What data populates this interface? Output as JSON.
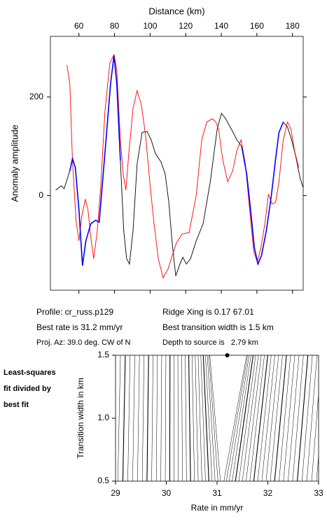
{
  "chart_data": [
    {
      "type": "line",
      "xlabel": "Distance (km)",
      "ylabel": "Anomaly amplitude",
      "xlim": [
        44,
        186
      ],
      "xticks": [
        60,
        80,
        100,
        120,
        140,
        160,
        180
      ],
      "ylim": [
        -192,
        323
      ],
      "yticks": [
        0,
        200
      ],
      "series": [
        {
          "color": "#000000",
          "x": [
            47.0,
            50.1,
            51.7,
            54.9,
            56.4,
            58.0,
            60.0,
            62.0,
            63.9,
            66.7,
            69.5,
            71.4,
            74.6,
            77.8,
            79.7,
            81.3,
            83.3,
            85.2,
            86.8,
            88.4,
            90.4,
            92.7,
            95.5,
            98.3,
            100.6,
            103.0,
            106.2,
            108.5,
            110.5,
            112.5,
            114.4,
            116.4,
            118.4,
            120.4,
            122.7,
            125.9,
            129.8,
            133.8,
            137.7,
            140.1,
            142.4,
            145.6,
            148.8,
            151.5,
            154.3,
            156.6,
            158.6,
            160.6,
            162.6,
            165.3,
            168.1,
            170.5,
            172.4,
            174.8,
            177.2,
            179.5,
            181.9,
            184.3,
            185.9
          ],
          "values": [
            11,
            20,
            14,
            50,
            75,
            57,
            -28,
            -142,
            -92,
            -57,
            -50,
            -54,
            85,
            227,
            284,
            227,
            71,
            -71,
            -128,
            -139,
            -71,
            64,
            128,
            130,
            113,
            85,
            68,
            43,
            -14,
            -99,
            -163,
            -142,
            -125,
            -139,
            -128,
            -92,
            -57,
            28,
            135,
            167,
            156,
            135,
            113,
            99,
            43,
            -35,
            -106,
            -139,
            -121,
            -71,
            0,
            74,
            128,
            149,
            139,
            113,
            78,
            35,
            17
          ]
        },
        {
          "color": "#ff0000",
          "x": [
            53.3,
            54.9,
            56.4,
            58.4,
            60.0,
            61.6,
            63.6,
            65.1,
            66.7,
            68.3,
            70.3,
            72.2,
            74.6,
            77.4,
            79.7,
            81.3,
            83.3,
            84.9,
            86.4,
            88.0,
            90.4,
            92.7,
            95.1,
            97.5,
            99.8,
            102.2,
            104.6,
            107.3,
            110.1,
            112.5,
            114.8,
            118.0,
            121.9,
            125.9,
            129.0,
            131.8,
            134.9,
            136.9,
            138.5,
            140.9,
            143.6,
            146.4,
            148.8,
            151.1,
            153.5,
            155.9,
            158.2,
            160.2,
            162.2,
            164.5,
            166.5,
            168.5,
            170.5,
            172.4,
            174.8,
            177.2,
            179.1,
            181.1,
            183.5
          ],
          "values": [
            265,
            227,
            71,
            -50,
            -92,
            -43,
            -7,
            -28,
            -85,
            -128,
            -71,
            14,
            170,
            269,
            286,
            255,
            113,
            43,
            11,
            85,
            177,
            213,
            184,
            121,
            28,
            -57,
            -128,
            -167,
            -149,
            -121,
            -96,
            -78,
            -75,
            0,
            113,
            149,
            156,
            149,
            135,
            71,
            28,
            50,
            92,
            113,
            64,
            -28,
            -113,
            -135,
            -106,
            -57,
            3,
            -17,
            -14,
            28,
            113,
            149,
            135,
            92,
            57
          ]
        },
        {
          "color": "#0000ff",
          "x": [
            54.9,
            56.4,
            58.0,
            60.0,
            62.0,
            63.9,
            66.7,
            69.5,
            71.4,
            74.6,
            77.8,
            79.7,
            81.3,
            83.3,
            120.0,
            151.5,
            154.3,
            156.6,
            158.6,
            160.6,
            162.6,
            165.3,
            168.1,
            170.5,
            172.4,
            174.8
          ],
          "values": [
            50,
            75,
            57,
            -28,
            -142,
            -92,
            -57,
            -50,
            -54,
            85,
            227,
            284,
            227,
            71,
            null,
            99,
            43,
            -35,
            -106,
            -139,
            -121,
            -71,
            0,
            74,
            128,
            149
          ]
        }
      ]
    },
    {
      "type": "contour",
      "xlabel": "Rate in mm/yr",
      "ylabel": "Transition width in km",
      "xlim": [
        29,
        33
      ],
      "xticks": [
        29,
        30,
        31,
        32,
        33
      ],
      "ylim": [
        0.5,
        1.5
      ],
      "yticks": [
        0.5,
        {
          "value": 1,
          "label": "1.0"
        },
        1.5
      ],
      "best": {
        "x": 31.2,
        "y": 1.5
      },
      "color": "#000000"
    }
  ],
  "info": {
    "left": [
      "Profile: cr_russ.p129",
      "Best rate is 31.2 mm/yr",
      "Proj. Az: 39.0 deg. CW of N"
    ],
    "right": [
      "Ridge Xing is 0.17 67.01",
      "Best transition width is 1.5 km",
      "Depth to source is   2.79 km"
    ],
    "note": [
      "Least-squares",
      "fit divided by",
      "best fit"
    ]
  }
}
